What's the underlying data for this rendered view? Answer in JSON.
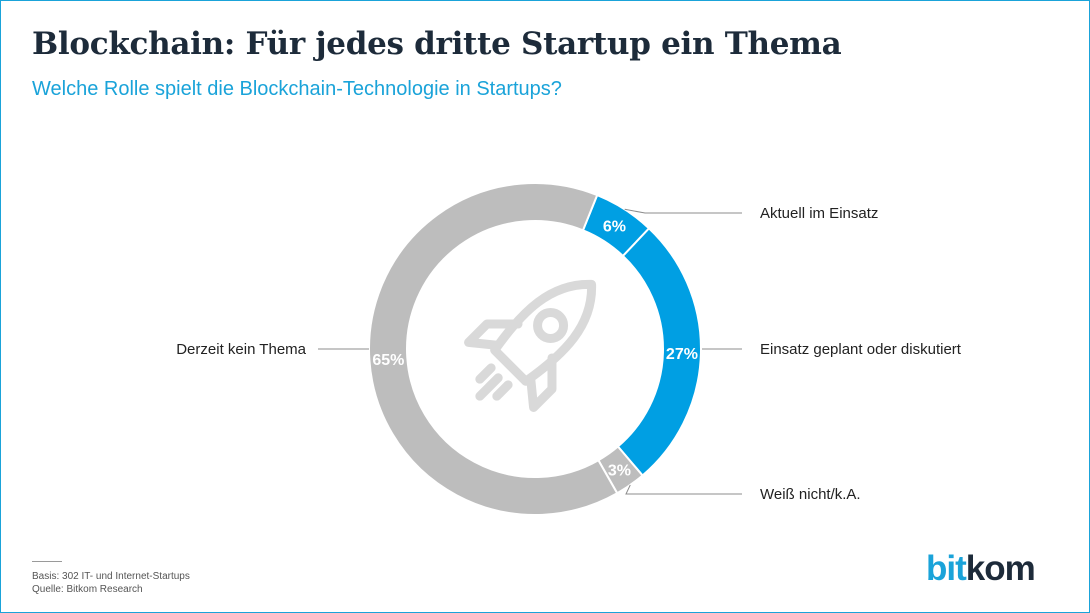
{
  "header": {
    "title": "Blockchain: Für jedes dritte Startup ein Thema",
    "subtitle": "Welche Rolle spielt die Blockchain-Technologie in Startups?"
  },
  "chart_data": {
    "type": "pie",
    "subtype": "donut",
    "title": "Blockchain: Für jedes dritte Startup ein Thema",
    "subtitle": "Welche Rolle spielt die Blockchain-Technologie in Startups?",
    "unit": "%",
    "slices": [
      {
        "label": "Aktuell im Einsatz",
        "value": 6,
        "value_label": "6%",
        "color": "#009fe3"
      },
      {
        "label": "Einsatz geplant oder diskutiert",
        "value": 27,
        "value_label": "27%",
        "color": "#009fe3"
      },
      {
        "label": "Weiß nicht/k.A.",
        "value": 3,
        "value_label": "3%",
        "color": "#bdbdbd"
      },
      {
        "label": "Derzeit kein Thema",
        "value": 65,
        "value_label": "65%",
        "color": "#bdbdbd"
      }
    ],
    "center_icon": "rocket-icon",
    "legend": "none"
  },
  "footer": {
    "basis": "Basis: 302 IT- und Internet-Startups",
    "source": "Quelle: Bitkom Research"
  },
  "logo": {
    "part1": "bit",
    "part2": "kom"
  },
  "colors": {
    "accent": "#1aa3d9",
    "title": "#1d2b3a",
    "blue_slice": "#009fe3",
    "grey_slice": "#bdbdbd",
    "icon": "#d9d9d9"
  }
}
